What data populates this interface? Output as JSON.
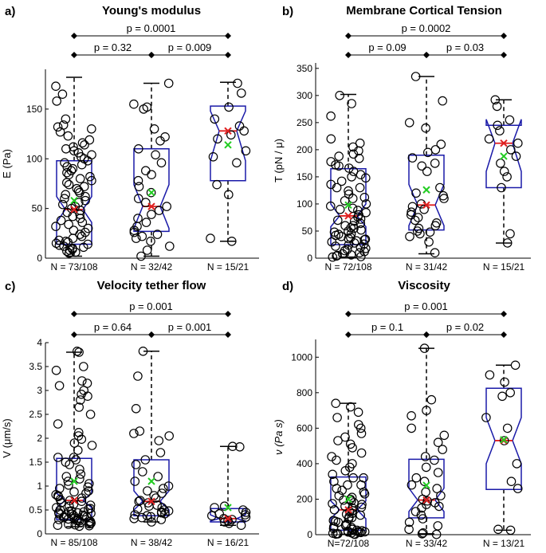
{
  "panels": [
    {
      "letter": "a)",
      "title": "Young's modulus",
      "ylabel": "E (Pa)",
      "yticks": [
        0,
        50,
        100,
        150
      ],
      "categories": [
        "N = 73/108",
        "N = 32/42",
        "N = 15/21"
      ],
      "pvalues": {
        "p12": "p = 0.32",
        "p23": "p = 0.009",
        "p13": "p = 0.0001"
      }
    },
    {
      "letter": "b)",
      "title": "Membrane Cortical Tension",
      "ylabel": "T (pN / μ)",
      "yticks": [
        0,
        50,
        100,
        150,
        200,
        250,
        300,
        350
      ],
      "categories": [
        "N = 72/108",
        "N = 31/42",
        "N = 15/21"
      ],
      "pvalues": {
        "p12": "p = 0.09",
        "p23": "p = 0.03",
        "p13": "p = 0.0002"
      }
    },
    {
      "letter": "c)",
      "title": "Velocity tether flow",
      "ylabel": "V (μm/s)",
      "yticks": [
        0,
        0.5,
        1,
        1.5,
        2,
        2.5,
        3,
        3.5,
        4
      ],
      "categories": [
        "N = 85/108",
        "N = 38/42",
        "N = 16/21"
      ],
      "pvalues": {
        "p12": "p = 0.64",
        "p23": "p = 0.001",
        "p13": "p = 0.001"
      }
    },
    {
      "letter": "d)",
      "title": "Viscosity",
      "ylabel": "ν (Pa s)",
      "yticks": [
        0,
        200,
        400,
        600,
        800,
        1000
      ],
      "categories": [
        "N=72/108",
        "N = 33/42",
        "N = 13/21"
      ],
      "pvalues": {
        "p12": "p = 0.1",
        "p23": "p = 0.02",
        "p13": "p = 0.001"
      }
    }
  ],
  "chart_data": [
    {
      "type": "boxplot",
      "notched": true,
      "title": "Young's modulus",
      "ylabel": "E (Pa)",
      "ylim": [
        0,
        190
      ],
      "categories": [
        "N = 73/108",
        "N = 32/42",
        "N = 15/21"
      ],
      "boxes": [
        {
          "q1": 14,
          "median": 49,
          "q3": 98,
          "whisker_low": 2,
          "whisker_high": 182,
          "mean": 58,
          "notch": [
            36,
            62
          ]
        },
        {
          "q1": 27,
          "median": 52,
          "q3": 110,
          "whisker_low": 2,
          "whisker_high": 176,
          "mean": 66,
          "notch": [
            30,
            74
          ]
        },
        {
          "q1": 78,
          "median": 128,
          "q3": 153,
          "whisker_low": 17,
          "whisker_high": 177,
          "mean": 114,
          "notch": [
            98,
            148
          ]
        }
      ],
      "points": [
        [
          173,
          165,
          158,
          140,
          134,
          132,
          130,
          127,
          123,
          119,
          116,
          114,
          112,
          110,
          108,
          106,
          104,
          102,
          100,
          98,
          96,
          94,
          92,
          90,
          88,
          86,
          84,
          82,
          80,
          78,
          76,
          74,
          72,
          70,
          68,
          66,
          64,
          62,
          60,
          58,
          56,
          54,
          52,
          50,
          48,
          46,
          44,
          42,
          40,
          38,
          36,
          34,
          32,
          30,
          28,
          26,
          24,
          22,
          20,
          18,
          17,
          16,
          15,
          14,
          13,
          12,
          11,
          10,
          9,
          8,
          7,
          6,
          5
        ],
        [
          176,
          155,
          152,
          150,
          130,
          122,
          118,
          110,
          104,
          96,
          88,
          84,
          78,
          72,
          66,
          60,
          56,
          52,
          48,
          44,
          40,
          36,
          32,
          28,
          26,
          24,
          22,
          20,
          17,
          12,
          8,
          2
        ],
        [
          176,
          166,
          152,
          140,
          133,
          128,
          124,
          120,
          108,
          102,
          96,
          74,
          64,
          20,
          17
        ]
      ]
    },
    {
      "type": "boxplot",
      "notched": true,
      "title": "Membrane Cortical Tension",
      "ylabel": "T (pN / μ)",
      "ylim": [
        0,
        360
      ],
      "categories": [
        "N = 72/108",
        "N = 31/42",
        "N = 15/21"
      ],
      "boxes": [
        {
          "q1": 25,
          "median": 78,
          "q3": 165,
          "whisker_low": 2,
          "whisker_high": 302,
          "mean": 98,
          "notch": [
            58,
            100
          ]
        },
        {
          "q1": 52,
          "median": 98,
          "q3": 190,
          "whisker_low": 8,
          "whisker_high": 335,
          "mean": 126,
          "notch": [
            60,
            136
          ]
        },
        {
          "q1": 130,
          "median": 212,
          "q3": 245,
          "whisker_low": 28,
          "whisker_high": 292,
          "mean": 188,
          "notch": [
            160,
            256
          ]
        }
      ],
      "points": [
        [
          300,
          285,
          262,
          220,
          212,
          205,
          198,
          192,
          188,
          184,
          178,
          172,
          166,
          160,
          154,
          148,
          142,
          136,
          130,
          124,
          118,
          112,
          106,
          100,
          96,
          92,
          88,
          84,
          80,
          76,
          72,
          68,
          64,
          60,
          56,
          52,
          48,
          44,
          40,
          36,
          34,
          32,
          30,
          28,
          26,
          24,
          22,
          20,
          18,
          16,
          14,
          12,
          10,
          8,
          6,
          5,
          4,
          3,
          2,
          60,
          55,
          45,
          38,
          35,
          42,
          50,
          70,
          90,
          110,
          130,
          150,
          170
        ],
        [
          335,
          290,
          250,
          240,
          210,
          200,
          195,
          185,
          175,
          170,
          160,
          130,
          120,
          115,
          110,
          100,
          95,
          90,
          85,
          80,
          75,
          70,
          65,
          60,
          55,
          50,
          48,
          45,
          40,
          30,
          10
        ],
        [
          292,
          280,
          255,
          245,
          235,
          220,
          212,
          200,
          188,
          175,
          160,
          150,
          130,
          45,
          28
        ]
      ]
    },
    {
      "type": "boxplot",
      "notched": true,
      "title": "Velocity tether flow",
      "ylabel": "V (μm/s)",
      "ylim": [
        0,
        4
      ],
      "categories": [
        "N = 85/108",
        "N = 38/42",
        "N = 16/21"
      ],
      "boxes": [
        {
          "q1": 0.3,
          "median": 0.7,
          "q3": 1.58,
          "whisker_low": 0.15,
          "whisker_high": 3.8,
          "mean": 1.1,
          "notch": [
            0.55,
            0.85
          ]
        },
        {
          "q1": 0.38,
          "median": 0.68,
          "q3": 1.55,
          "whisker_low": 0.25,
          "whisker_high": 3.82,
          "mean": 1.1,
          "notch": [
            0.5,
            0.9
          ]
        },
        {
          "q1": 0.25,
          "median": 0.32,
          "q3": 0.53,
          "whisker_low": 0.18,
          "whisker_high": 1.83,
          "mean": 0.55,
          "notch": [
            0.27,
            0.4
          ]
        }
      ],
      "points": [
        [
          3.82,
          3.8,
          3.5,
          3.42,
          3.2,
          3.15,
          3.1,
          3.0,
          2.92,
          2.88,
          2.8,
          2.65,
          2.5,
          2.3,
          2.12,
          2.05,
          1.98,
          1.9,
          1.85,
          1.75,
          1.6,
          1.6,
          1.55,
          1.5,
          1.45,
          1.35,
          1.25,
          1.2,
          1.15,
          1.1,
          1.05,
          1.02,
          0.98,
          0.95,
          0.9,
          0.88,
          0.85,
          0.82,
          0.8,
          0.78,
          0.75,
          0.72,
          0.7,
          0.68,
          0.65,
          0.62,
          0.6,
          0.58,
          0.55,
          0.53,
          0.52,
          0.5,
          0.48,
          0.47,
          0.46,
          0.45,
          0.44,
          0.43,
          0.42,
          0.41,
          0.4,
          0.39,
          0.38,
          0.37,
          0.36,
          0.35,
          0.34,
          0.33,
          0.32,
          0.31,
          0.3,
          0.29,
          0.28,
          0.27,
          0.26,
          0.25,
          0.24,
          0.23,
          0.22,
          0.21,
          0.2,
          0.19,
          0.18,
          0.17,
          0.16
        ],
        [
          3.82,
          3.3,
          2.62,
          2.15,
          2.1,
          2.05,
          1.95,
          1.7,
          1.55,
          1.45,
          1.3,
          1.2,
          1.1,
          1.0,
          0.95,
          0.9,
          0.85,
          0.8,
          0.75,
          0.7,
          0.68,
          0.65,
          0.6,
          0.58,
          0.55,
          0.52,
          0.5,
          0.48,
          0.46,
          0.44,
          0.42,
          0.4,
          0.38,
          0.36,
          0.34,
          0.32,
          0.3,
          0.25
        ],
        [
          1.83,
          1.82,
          0.58,
          0.55,
          0.5,
          0.45,
          0.42,
          0.4,
          0.38,
          0.35,
          0.32,
          0.3,
          0.28,
          0.25,
          0.22,
          0.18
        ]
      ]
    },
    {
      "type": "boxplot",
      "notched": true,
      "title": "Viscosity",
      "ylabel": "ν (Pa s)",
      "ylim": [
        0,
        1100
      ],
      "categories": [
        "N=72/108",
        "N = 33/42",
        "N = 13/21"
      ],
      "boxes": [
        {
          "q1": 25,
          "median": 140,
          "q3": 325,
          "whisker_low": 2,
          "whisker_high": 740,
          "mean": 200,
          "notch": [
            90,
            190
          ]
        },
        {
          "q1": 95,
          "median": 195,
          "q3": 425,
          "whisker_low": 5,
          "whisker_high": 1050,
          "mean": 278,
          "notch": [
            130,
            262
          ]
        },
        {
          "q1": 255,
          "median": 530,
          "q3": 825,
          "whisker_low": 25,
          "whisker_high": 955,
          "mean": 535,
          "notch": [
            400,
            660
          ]
        }
      ],
      "points": [
        [
          740,
          720,
          690,
          660,
          620,
          600,
          570,
          550,
          530,
          510,
          490,
          460,
          440,
          420,
          400,
          380,
          360,
          340,
          320,
          300,
          280,
          260,
          240,
          220,
          200,
          190,
          180,
          170,
          160,
          150,
          140,
          130,
          120,
          110,
          100,
          90,
          80,
          70,
          60,
          50,
          45,
          40,
          35,
          30,
          25,
          20,
          18,
          16,
          14,
          12,
          10,
          8,
          6,
          5,
          4,
          3,
          2,
          320,
          280,
          250,
          230,
          210,
          195,
          175,
          155,
          135,
          115,
          95,
          75,
          55,
          22,
          15
        ],
        [
          1050,
          760,
          700,
          670,
          600,
          560,
          520,
          480,
          440,
          420,
          380,
          350,
          320,
          300,
          280,
          260,
          240,
          220,
          200,
          190,
          180,
          170,
          160,
          150,
          130,
          110,
          90,
          70,
          50,
          30,
          10,
          5,
          2
        ],
        [
          955,
          900,
          860,
          800,
          780,
          660,
          600,
          530,
          400,
          300,
          260,
          30,
          25
        ]
      ]
    }
  ]
}
